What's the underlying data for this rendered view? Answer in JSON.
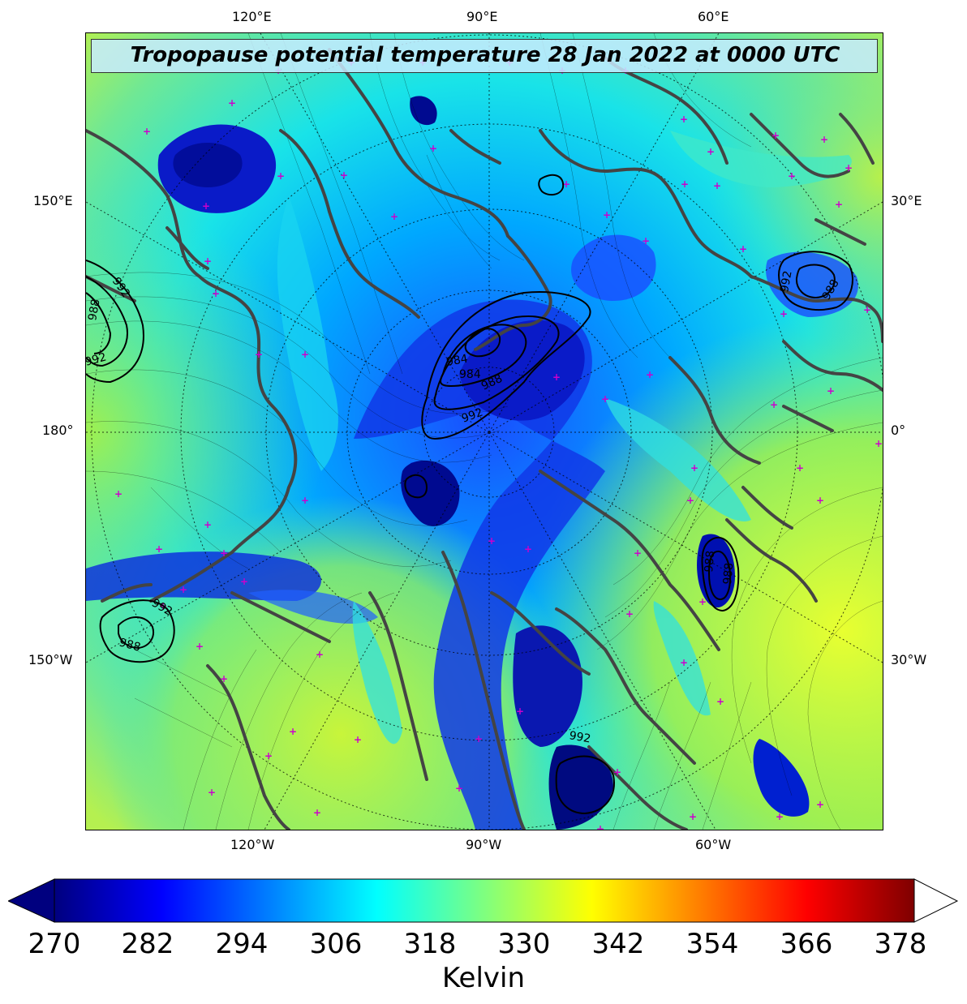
{
  "title": "Tropopause potential temperature 28 Jan 2022 at 0000 UTC",
  "top_lon_labels": [
    "120°E",
    "90°E",
    "60°E"
  ],
  "bottom_lon_labels": [
    "120°W",
    "90°W",
    "60°W"
  ],
  "left_lon_labels": [
    "150°E",
    "180°",
    "150°W"
  ],
  "right_lon_labels": [
    "30°E",
    "0°",
    "30°W"
  ],
  "contour_labels": [
    "992",
    "988",
    "984",
    "988",
    "992",
    "988",
    "992",
    "988",
    "992",
    "992",
    "988",
    "992",
    "988",
    "984"
  ],
  "colorbar": {
    "ticks": [
      "270",
      "282",
      "294",
      "306",
      "318",
      "330",
      "342",
      "354",
      "366",
      "378"
    ],
    "unit": "Kelvin",
    "colors": [
      "#00007f",
      "#0000ff",
      "#007fff",
      "#00ffff",
      "#7fff7f",
      "#ffff00",
      "#ff7f00",
      "#ff0000",
      "#7f0000"
    ]
  },
  "colors": {
    "coastline": "#444444",
    "marker": "#cc00cc",
    "contour": "#000000"
  }
}
